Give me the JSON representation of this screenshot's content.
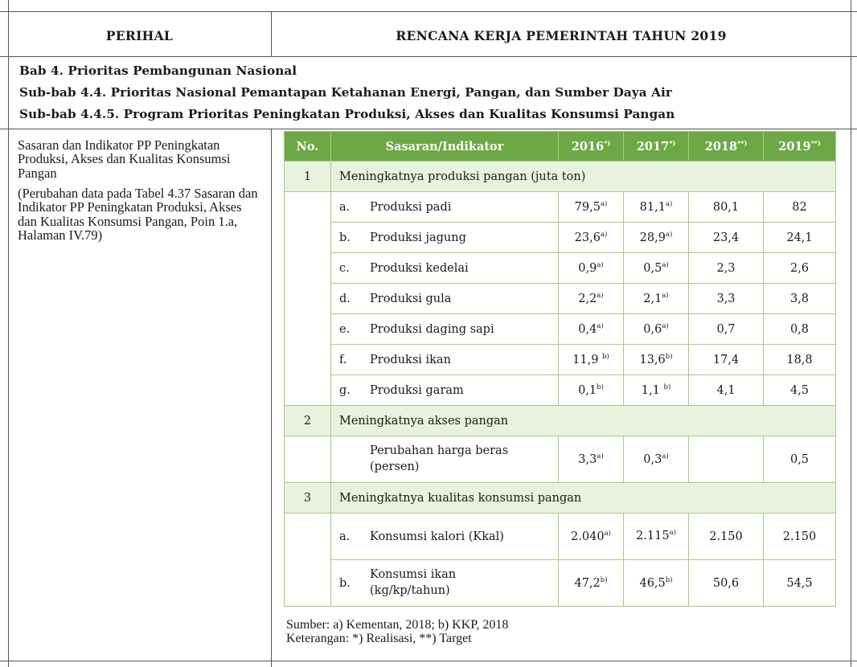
{
  "header": {
    "col1": "PERIHAL",
    "col2": "RENCANA KERJA PEMERINTAH TAHUN 2019"
  },
  "chapter": {
    "bab": "Bab 4. Prioritas Pembangunan Nasional",
    "subbab1": "Sub-bab 4.4. Prioritas Nasional Pemantapan Ketahanan Energi, Pangan, dan Sumber Daya Air",
    "subbab2": "Sub-bab 4.4.5. Program Prioritas Peningkatan Produksi, Akses dan Kualitas Konsumsi Pangan"
  },
  "left": {
    "title": "Sasaran dan Indikator PP Peningkatan Produksi, Akses dan Kualitas Konsumsi Pangan",
    "note": "(Perubahan data pada Tabel 4.37 Sasaran dan Indikator PP Peningkatan Produksi, Akses dan Kualitas Konsumsi Pangan, Poin 1.a, Halaman IV.79)"
  },
  "table": {
    "head": {
      "no": "No.",
      "indikator": "Sasaran/Indikator",
      "y2016": "2016",
      "y2016_mark": "*)",
      "y2017": "2017",
      "y2017_mark": "*)",
      "y2018": "2018",
      "y2018_mark": "**)",
      "y2019": "2019",
      "y2019_mark": "**)"
    },
    "groups": [
      {
        "no": "1",
        "label": "Meningkatnya produksi pangan (juta ton)",
        "items": [
          {
            "letter": "a.",
            "name": "Produksi padi",
            "v2016": "79,5",
            "n2016": "a)",
            "v2017": "81,1",
            "n2017": "a)",
            "v2018": "80,1",
            "v2019": "82"
          },
          {
            "letter": "b.",
            "name": "Produksi jagung",
            "v2016": "23,6",
            "n2016": "a)",
            "v2017": "28,9",
            "n2017": "a)",
            "v2018": "23,4",
            "v2019": "24,1"
          },
          {
            "letter": "c.",
            "name": "Produksi kedelai",
            "v2016": "0,9",
            "n2016": "a)",
            "v2017": "0,5",
            "n2017": "a)",
            "v2018": "2,3",
            "v2019": "2,6"
          },
          {
            "letter": "d.",
            "name": "Produksi gula",
            "v2016": "2,2",
            "n2016": "a)",
            "v2017": "2,1",
            "n2017": "a)",
            "v2018": "3,3",
            "v2019": "3,8"
          },
          {
            "letter": "e.",
            "name": "Produksi daging sapi",
            "v2016": "0,4",
            "n2016": "a)",
            "v2017": "0,6",
            "n2017": "a)",
            "v2018": "0,7",
            "v2019": "0,8"
          },
          {
            "letter": "f.",
            "name": "Produksi ikan",
            "v2016": "11,9",
            "n2016": "b)",
            "v2017": "13,6",
            "n2017": "b)",
            "v2018": "17,4",
            "v2019": "18,8"
          },
          {
            "letter": "g.",
            "name": "Produksi garam",
            "v2016": "0,1",
            "n2016": "b)",
            "v2017": "1,1",
            "n2017": "b)",
            "v2018": "4,1",
            "v2019": "4,5"
          }
        ]
      },
      {
        "no": "2",
        "label": "Meningkatnya akses pangan",
        "items": [
          {
            "letter": "",
            "name": "Perubahan harga beras (persen)",
            "v2016": "3,3",
            "n2016": "a)",
            "v2017": "0,3",
            "n2017": "a)",
            "v2018": "",
            "v2019": "0,5"
          }
        ]
      },
      {
        "no": "3",
        "label": "Meningkatnya kualitas konsumsi pangan",
        "items": [
          {
            "letter": "a.",
            "name": "Konsumsi kalori (Kkal)",
            "v2016": "2.040",
            "n2016": "a)",
            "v2017": "2.115",
            "n2017": "a)",
            "v2018": "2.150",
            "v2019": "2.150"
          },
          {
            "letter": "b.",
            "name": "Konsumsi ikan (kg/kp/tahun)",
            "v2016": "47,2",
            "n2016": "b)",
            "v2017": "46,5",
            "n2017": "b)",
            "v2018": "50,6",
            "v2019": "54,5"
          }
        ]
      }
    ]
  },
  "footer": {
    "source": "Sumber: a) Kementan, 2018; b) KKP, 2018",
    "note": "Keterangan: *) Realisasi, **) Target"
  }
}
